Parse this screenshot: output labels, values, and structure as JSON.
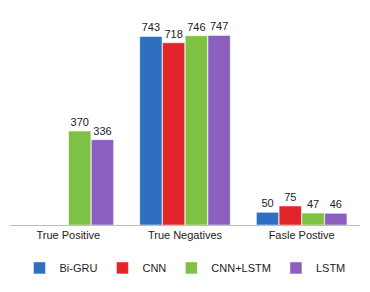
{
  "chart_data": {
    "type": "bar",
    "categories": [
      "True Positive",
      "True Negatives",
      "Fasle Postive"
    ],
    "series": [
      {
        "name": "Bi-GRU",
        "color": "#2f6fc0",
        "values": [
          null,
          743,
          50
        ]
      },
      {
        "name": "CNN",
        "color": "#e0262b",
        "values": [
          null,
          718,
          75
        ]
      },
      {
        "name": "CNN+LSTM",
        "color": "#7dc242",
        "values": [
          370,
          746,
          47
        ]
      },
      {
        "name": "LSTM",
        "color": "#8a5fc0",
        "values": [
          336,
          747,
          46
        ]
      }
    ],
    "ylim": [
      0,
      800
    ],
    "tick_labels": "x",
    "grid": false,
    "legend": "bottom",
    "data_labels": true
  }
}
